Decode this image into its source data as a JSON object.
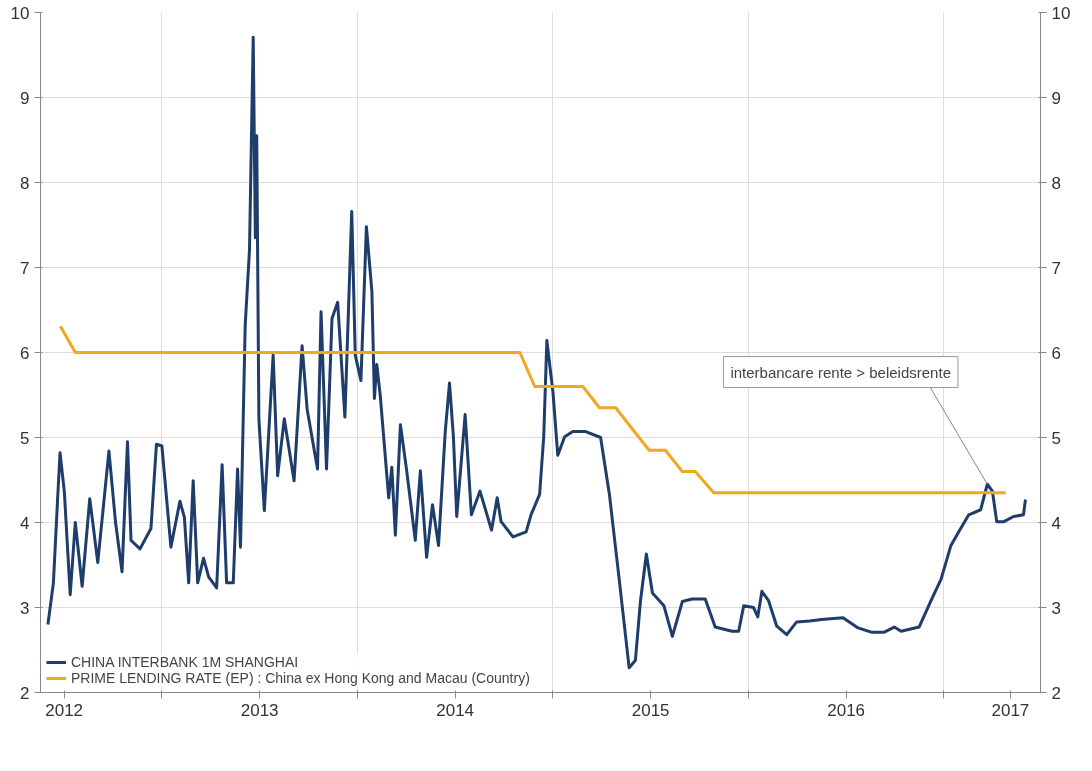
{
  "chart_data": {
    "type": "line",
    "xlim": [
      2012.379,
      2017.494
    ],
    "xticks": [
      {
        "value": 2012.5,
        "label": "2012"
      },
      {
        "value": 2013,
        "label": null
      },
      {
        "value": 2013.5,
        "label": "2013"
      },
      {
        "value": 2014,
        "label": null
      },
      {
        "value": 2014.5,
        "label": "2014"
      },
      {
        "value": 2015,
        "label": null
      },
      {
        "value": 2015.5,
        "label": "2015"
      },
      {
        "value": 2016,
        "label": null
      },
      {
        "value": 2016.5,
        "label": "2016"
      },
      {
        "value": 2017,
        "label": null
      },
      {
        "value": 2017.34,
        "label": "2017"
      }
    ],
    "ylim": [
      2,
      10
    ],
    "yticks": [
      2,
      3,
      4,
      5,
      6,
      7,
      8,
      9,
      10
    ],
    "y2lim": [
      2,
      10
    ],
    "y2ticks": [
      2,
      3,
      4,
      5,
      6,
      7,
      8,
      9,
      10
    ],
    "grid": true,
    "legend": "bottom left",
    "line_style": "solid",
    "annotations": [
      {
        "text": "interbancare rente > beleidsrente",
        "x": 2017.222,
        "y": 4.45
      }
    ],
    "series": [
      {
        "name": "CHINA INTERBANK 1M SHANGHAI",
        "color": "#1f3d6b",
        "x": [
          2012.417,
          2012.445,
          2012.467,
          2012.479,
          2012.501,
          2012.531,
          2012.557,
          2012.592,
          2012.631,
          2012.672,
          2012.729,
          2012.763,
          2012.796,
          2012.824,
          2012.842,
          2012.888,
          2012.944,
          2012.972,
          2013.0,
          2013.046,
          2013.092,
          2013.115,
          2013.137,
          2013.16,
          2013.183,
          2013.213,
          2013.239,
          2013.28,
          2013.308,
          2013.331,
          2013.365,
          2013.387,
          2013.402,
          2013.426,
          2013.448,
          2013.467,
          2013.478,
          2013.485,
          2013.496,
          2013.524,
          2013.569,
          2013.592,
          2013.626,
          2013.676,
          2013.717,
          2013.743,
          2013.796,
          2013.814,
          2013.842,
          2013.87,
          2013.899,
          2013.936,
          2013.971,
          2013.989,
          2014.018,
          2014.046,
          2014.074,
          2014.087,
          2014.099,
          2014.117,
          2014.16,
          2014.176,
          2014.194,
          2014.22,
          2014.252,
          2014.296,
          2014.322,
          2014.354,
          2014.384,
          2014.415,
          2014.449,
          2014.471,
          2014.491,
          2014.508,
          2014.551,
          2014.583,
          2014.627,
          2014.686,
          2014.715,
          2014.735,
          2014.796,
          2014.863,
          2014.888,
          2014.932,
          2014.953,
          2014.969,
          2015.0,
          2015.025,
          2015.06,
          2015.102,
          2015.168,
          2015.244,
          2015.289,
          2015.339,
          2015.39,
          2015.422,
          2015.448,
          2015.478,
          2015.509,
          2015.568,
          2015.611,
          2015.662,
          2015.712,
          2015.779,
          2015.83,
          2015.916,
          2015.95,
          2015.976,
          2016.026,
          2016.048,
          2016.069,
          2016.103,
          2016.145,
          2016.196,
          2016.247,
          2016.313,
          2016.374,
          2016.484,
          2016.561,
          2016.628,
          2016.695,
          2016.746,
          2016.781,
          2016.873,
          2016.934,
          2016.985,
          2017.036,
          2017.076,
          2017.127,
          2017.188,
          2017.222,
          2017.248,
          2017.27,
          2017.307,
          2017.356,
          2017.407,
          2017.417
        ],
        "values": [
          2.8,
          3.29,
          4.3,
          4.82,
          4.36,
          3.15,
          4.0,
          3.25,
          4.28,
          3.53,
          4.84,
          4.0,
          3.42,
          4.95,
          3.79,
          3.69,
          3.93,
          4.92,
          4.9,
          3.71,
          4.25,
          4.06,
          3.29,
          4.49,
          3.29,
          3.58,
          3.36,
          3.23,
          4.68,
          3.29,
          3.29,
          4.63,
          3.71,
          6.32,
          7.21,
          9.71,
          7.35,
          8.55,
          5.22,
          4.14,
          5.97,
          4.55,
          5.22,
          4.49,
          6.08,
          5.33,
          4.63,
          6.48,
          4.63,
          6.4,
          6.59,
          5.24,
          7.66,
          5.97,
          5.67,
          7.48,
          6.72,
          5.46,
          5.86,
          5.49,
          4.29,
          4.65,
          3.85,
          5.15,
          4.61,
          3.79,
          4.61,
          3.59,
          4.21,
          3.73,
          5.06,
          5.64,
          5.01,
          4.07,
          5.27,
          4.09,
          4.37,
          3.91,
          4.29,
          4.01,
          3.83,
          3.89,
          4.09,
          4.33,
          5.01,
          6.14,
          5.54,
          4.79,
          5.01,
          5.07,
          5.07,
          5.0,
          4.33,
          3.33,
          2.29,
          2.38,
          3.08,
          3.63,
          3.17,
          3.02,
          2.66,
          3.07,
          3.1,
          3.1,
          2.77,
          2.72,
          2.72,
          3.02,
          3.0,
          2.89,
          3.19,
          3.08,
          2.78,
          2.68,
          2.83,
          2.84,
          2.86,
          2.88,
          2.76,
          2.71,
          2.71,
          2.77,
          2.72,
          2.77,
          3.08,
          3.33,
          3.73,
          3.89,
          4.09,
          4.15,
          4.45,
          4.37,
          4.01,
          4.01,
          4.07,
          4.09,
          4.27
        ]
      },
      {
        "name": "PRIME LENDING RATE (EP) : China ex Hong Kong and Macau (Country)",
        "color": "#f0a81c",
        "x": [
          2012.481,
          2012.557,
          2014.831,
          2014.907,
          2015.153,
          2015.238,
          2015.321,
          2015.492,
          2015.575,
          2015.662,
          2015.728,
          2015.823,
          2017.316
        ],
        "values": [
          6.31,
          6.0,
          6.0,
          5.6,
          5.6,
          5.35,
          5.35,
          4.85,
          4.85,
          4.6,
          4.6,
          4.35,
          4.35
        ]
      }
    ]
  }
}
